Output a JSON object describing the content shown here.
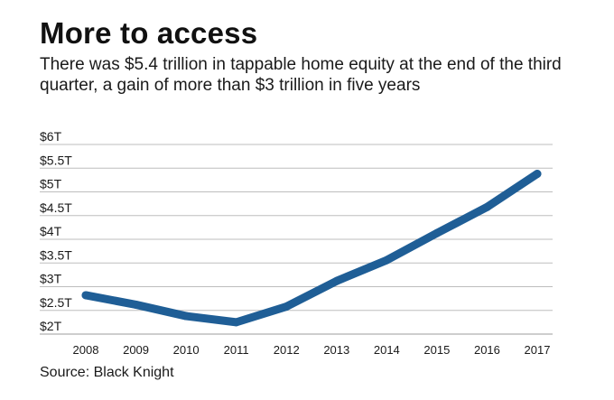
{
  "title": "More to access",
  "subtitle": "There was $5.4 trillion in tappable home equity at the end of the third quarter, a gain of more than $3 trillion in five years",
  "source": "Source: Black Knight",
  "line_color": "#1f5e96",
  "grid_color": "#bdbdbd",
  "chart_data": {
    "type": "line",
    "x": [
      "2008",
      "2009",
      "2010",
      "2011",
      "2012",
      "2013",
      "2014",
      "2015",
      "2016",
      "2017"
    ],
    "series": [
      {
        "values": [
          2.82,
          2.62,
          2.38,
          2.25,
          2.58,
          3.12,
          3.56,
          4.13,
          4.68,
          5.38
        ]
      }
    ],
    "ylim": [
      2,
      6
    ],
    "yticks": [
      2,
      2.5,
      3,
      3.5,
      4,
      4.5,
      5,
      5.5,
      6
    ],
    "ytick_labels": [
      "$2T",
      "$2.5T",
      "$3T",
      "$3.5T",
      "$4T",
      "$4.5T",
      "$5T",
      "$5.5T",
      "$6T"
    ],
    "xlabel": "",
    "ylabel": "",
    "grid": true
  }
}
